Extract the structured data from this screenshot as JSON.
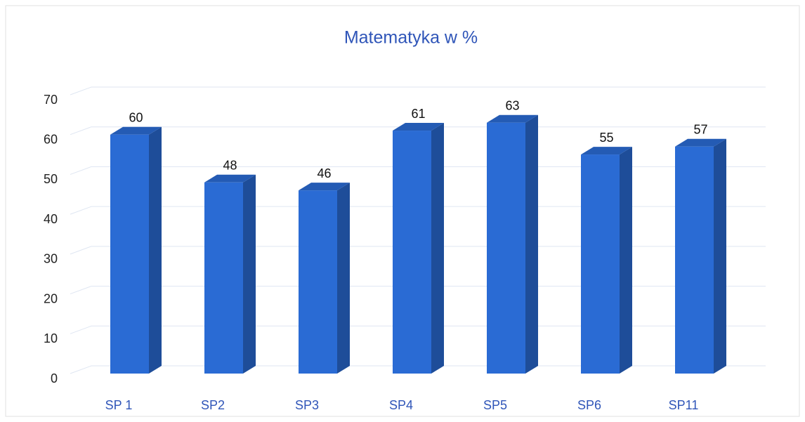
{
  "chart_data": {
    "type": "bar3d",
    "title": "Matematyka w %",
    "categories": [
      "SP 1",
      "SP2",
      "SP3",
      "SP4",
      "SP5",
      "SP6",
      "SP11"
    ],
    "values": [
      60,
      48,
      46,
      61,
      63,
      55,
      57
    ],
    "color": "#2a6bd4",
    "ylim": [
      0,
      70
    ],
    "yticks": [
      0,
      10,
      20,
      30,
      40,
      50,
      60,
      70
    ],
    "grid": true
  }
}
